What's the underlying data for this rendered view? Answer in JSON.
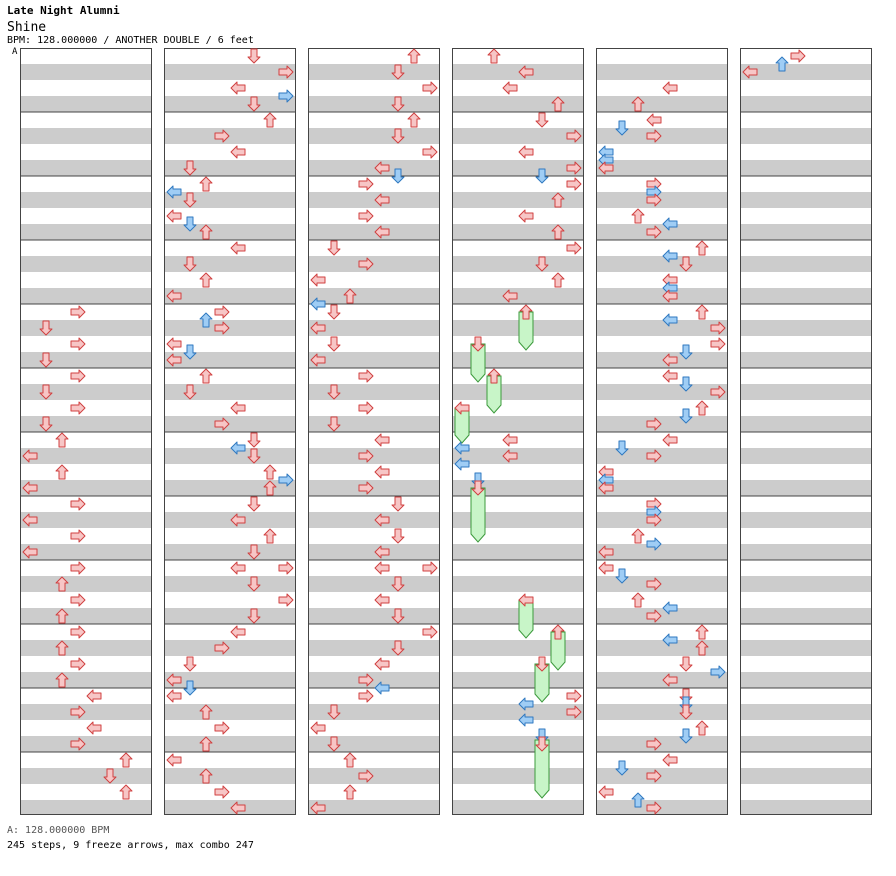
{
  "header": {
    "artist": "Late Night Alumni",
    "title": "Shine",
    "meta": "BPM: 128.000000 / ANOTHER DOUBLE / 6 feet",
    "bpm_marker": "A"
  },
  "footer": {
    "bpm_legend": "A: 128.000000 BPM",
    "stats": "245 steps, 9 freeze arrows, max combo 247"
  },
  "colors": {
    "red_fill": "#f7c6c6",
    "red_stroke": "#d04040",
    "blue_fill": "#9fcdf5",
    "blue_stroke": "#2f78c0",
    "freeze_fill": "#c8f5c8",
    "freeze_stroke": "#3c9a3c",
    "stripe": "#cccccc",
    "border": "#444444"
  },
  "icons": [
    "arrow-left-icon",
    "arrow-down-icon",
    "arrow-up-icon",
    "arrow-right-icon"
  ]
}
